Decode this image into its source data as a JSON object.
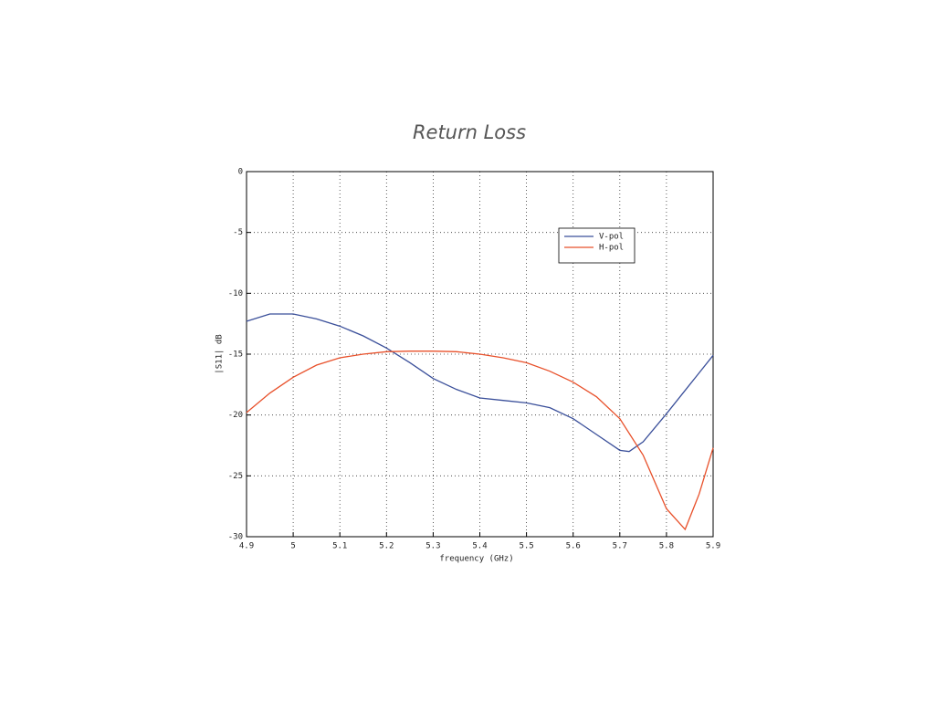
{
  "chart_data": {
    "type": "line",
    "title": "Return Loss",
    "xlabel": "frequency (GHz)",
    "ylabel": "|S11| dB",
    "xlim": [
      4.9,
      5.9
    ],
    "xticks": [
      4.9,
      5,
      5.1,
      5.2,
      5.3,
      5.4,
      5.5,
      5.6,
      5.7,
      5.8,
      5.9
    ],
    "ylim": [
      -30,
      0
    ],
    "yticks": [
      0,
      -5,
      -10,
      -15,
      -20,
      -25,
      -30
    ],
    "grid": true,
    "legend": "upper right",
    "series": [
      {
        "name": "V-pol",
        "color": "#3a4f9a",
        "x": [
          4.9,
          4.95,
          5.0,
          5.05,
          5.1,
          5.15,
          5.2,
          5.25,
          5.3,
          5.35,
          5.4,
          5.45,
          5.5,
          5.55,
          5.6,
          5.65,
          5.7,
          5.72,
          5.75,
          5.8,
          5.85,
          5.9
        ],
        "values": [
          -12.3,
          -11.7,
          -11.7,
          -12.1,
          -12.7,
          -13.5,
          -14.5,
          -15.7,
          -17.0,
          -17.9,
          -18.6,
          -18.8,
          -19.0,
          -19.4,
          -20.3,
          -21.6,
          -22.9,
          -23.0,
          -22.2,
          -19.9,
          -17.5,
          -15.1
        ]
      },
      {
        "name": "H-pol",
        "color": "#e8502a",
        "x": [
          4.9,
          4.95,
          5.0,
          5.05,
          5.1,
          5.15,
          5.2,
          5.25,
          5.3,
          5.35,
          5.4,
          5.45,
          5.5,
          5.55,
          5.6,
          5.65,
          5.7,
          5.75,
          5.8,
          5.84,
          5.87,
          5.9
        ],
        "values": [
          -19.8,
          -18.2,
          -16.9,
          -15.9,
          -15.3,
          -15.0,
          -14.8,
          -14.75,
          -14.75,
          -14.8,
          -15.0,
          -15.3,
          -15.7,
          -16.4,
          -17.3,
          -18.5,
          -20.3,
          -23.3,
          -27.7,
          -29.4,
          -26.5,
          -22.7
        ]
      }
    ]
  }
}
